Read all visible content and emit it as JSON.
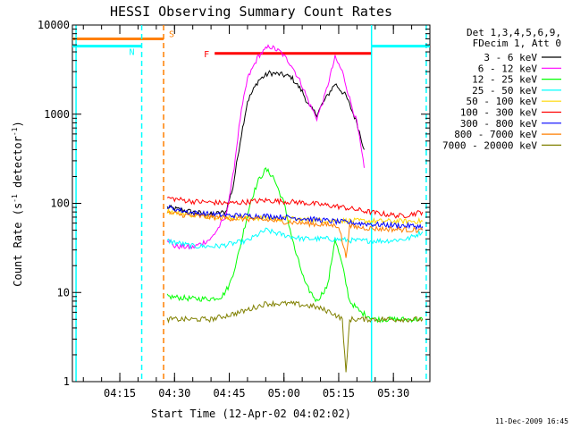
{
  "chart_data": {
    "type": "line",
    "title": "HESSI Observing Summary Count Rates",
    "xlabel": "Start Time (12-Apr-02 04:02:02)",
    "ylabel": "Count Rate (s⁻¹ detector⁻¹)",
    "ylabel_parts": {
      "main": "Count Rate (s",
      "sup1": "-1",
      "mid": " detector",
      "sup2": "-1",
      "end": ")"
    },
    "y_scale": "log",
    "ylim": [
      1,
      10000
    ],
    "y_ticks": [
      {
        "value": 1,
        "label": "1"
      },
      {
        "value": 10,
        "label": "10"
      },
      {
        "value": 100,
        "label": "100"
      },
      {
        "value": 1000,
        "label": "1000"
      },
      {
        "value": 10000,
        "label": "10000"
      }
    ],
    "xlim": [
      "04:02",
      "05:40"
    ],
    "x_ticks": [
      "04:15",
      "04:30",
      "04:45",
      "05:00",
      "05:15",
      "05:30"
    ],
    "legend_header": [
      "Det 1,3,4,5,6,9,",
      "FDecim 1, Att 0"
    ],
    "legend_placement": "right",
    "footer": "11-Dec-2009 16:45",
    "flags": [
      {
        "label": "S",
        "color": "#ff7f00",
        "x_start": "04:02",
        "x_end": "04:27",
        "y": 7000
      },
      {
        "label": "N",
        "color": "#00ffff",
        "x_start": "04:02",
        "x_end": "04:21",
        "y": 5800
      },
      {
        "label": "",
        "color": "#00ffff",
        "x_start": "05:24",
        "x_end": "05:40",
        "y": 5800
      },
      {
        "label": "F",
        "color": "#ff0000",
        "x_start": "04:41",
        "x_end": "05:24",
        "y": 4800
      }
    ],
    "vlines": [
      {
        "x": "04:03",
        "color": "#00ffff",
        "style": "solid"
      },
      {
        "x": "04:21",
        "color": "#00ffff",
        "style": "dashed"
      },
      {
        "x": "04:27",
        "color": "#ff7f00",
        "style": "dashed"
      },
      {
        "x": "05:24",
        "color": "#00ffff",
        "style": "solid"
      },
      {
        "x": "05:39",
        "color": "#00ffff",
        "style": "dashed"
      }
    ],
    "series": [
      {
        "name": "3 - 6 keV",
        "color": "#000000",
        "points": [
          [
            "04:28",
            90
          ],
          [
            "04:35",
            80
          ],
          [
            "04:40",
            75
          ],
          [
            "04:44",
            80
          ],
          [
            "04:46",
            150
          ],
          [
            "04:48",
            500
          ],
          [
            "04:50",
            1400
          ],
          [
            "04:53",
            2400
          ],
          [
            "04:56",
            2900
          ],
          [
            "04:59",
            2800
          ],
          [
            "05:02",
            2600
          ],
          [
            "05:05",
            1800
          ],
          [
            "05:07",
            1200
          ],
          [
            "05:09",
            1000
          ],
          [
            "05:11",
            1400
          ],
          [
            "05:14",
            2200
          ],
          [
            "05:17",
            1600
          ],
          [
            "05:20",
            800
          ],
          [
            "05:22",
            400
          ]
        ]
      },
      {
        "name": "6 - 12 keV",
        "color": "#ff00ff",
        "points": [
          [
            "04:28",
            40
          ],
          [
            "04:30",
            33
          ],
          [
            "04:35",
            32
          ],
          [
            "04:40",
            40
          ],
          [
            "04:44",
            70
          ],
          [
            "04:46",
            200
          ],
          [
            "04:48",
            900
          ],
          [
            "04:50",
            2500
          ],
          [
            "04:53",
            4500
          ],
          [
            "04:56",
            5800
          ],
          [
            "04:59",
            5000
          ],
          [
            "05:02",
            3600
          ],
          [
            "05:05",
            2100
          ],
          [
            "05:07",
            1300
          ],
          [
            "05:09",
            900
          ],
          [
            "05:11",
            1500
          ],
          [
            "05:14",
            4300
          ],
          [
            "05:16",
            3000
          ],
          [
            "05:18",
            1500
          ],
          [
            "05:20",
            800
          ],
          [
            "05:22",
            250
          ]
        ]
      },
      {
        "name": "12 - 25 keV",
        "color": "#00ff00",
        "points": [
          [
            "04:28",
            9
          ],
          [
            "04:35",
            8.5
          ],
          [
            "04:40",
            8.5
          ],
          [
            "04:43",
            9
          ],
          [
            "04:45",
            12
          ],
          [
            "04:47",
            22
          ],
          [
            "04:49",
            50
          ],
          [
            "04:51",
            110
          ],
          [
            "04:53",
            180
          ],
          [
            "04:55",
            240
          ],
          [
            "04:57",
            200
          ],
          [
            "05:00",
            100
          ],
          [
            "05:03",
            30
          ],
          [
            "05:06",
            12
          ],
          [
            "05:09",
            8
          ],
          [
            "05:12",
            12
          ],
          [
            "05:14",
            40
          ],
          [
            "05:16",
            20
          ],
          [
            "05:18",
            8
          ],
          [
            "05:21",
            6
          ],
          [
            "05:25",
            5
          ],
          [
            "05:30",
            5
          ],
          [
            "05:38",
            5
          ]
        ]
      },
      {
        "name": "25 - 50 keV",
        "color": "#00ffff",
        "points": [
          [
            "04:28",
            38
          ],
          [
            "04:35",
            33
          ],
          [
            "04:42",
            33
          ],
          [
            "04:50",
            38
          ],
          [
            "04:55",
            50
          ],
          [
            "04:59",
            45
          ],
          [
            "05:05",
            40
          ],
          [
            "05:12",
            40
          ],
          [
            "05:20",
            38
          ],
          [
            "05:28",
            38
          ],
          [
            "05:34",
            40
          ],
          [
            "05:38",
            48
          ]
        ]
      },
      {
        "name": "50 - 100 keV",
        "color": "#ffd700",
        "points": [
          [
            "04:28",
            82
          ],
          [
            "04:35",
            74
          ],
          [
            "04:45",
            70
          ],
          [
            "04:55",
            68
          ],
          [
            "05:05",
            66
          ],
          [
            "05:15",
            64
          ],
          [
            "05:25",
            63
          ],
          [
            "05:38",
            63
          ]
        ]
      },
      {
        "name": "100 - 300 keV",
        "color": "#ff0000",
        "points": [
          [
            "04:28",
            115
          ],
          [
            "04:35",
            105
          ],
          [
            "04:45",
            100
          ],
          [
            "04:55",
            108
          ],
          [
            "05:05",
            102
          ],
          [
            "05:15",
            92
          ],
          [
            "05:25",
            78
          ],
          [
            "05:32",
            72
          ],
          [
            "05:38",
            80
          ]
        ]
      },
      {
        "name": "300 - 800 keV",
        "color": "#0000ff",
        "points": [
          [
            "04:28",
            90
          ],
          [
            "04:35",
            78
          ],
          [
            "04:45",
            73
          ],
          [
            "04:55",
            72
          ],
          [
            "05:05",
            68
          ],
          [
            "05:15",
            62
          ],
          [
            "05:25",
            58
          ],
          [
            "05:38",
            55
          ]
        ]
      },
      {
        "name": "800 - 7000 keV",
        "color": "#ff7f00",
        "points": [
          [
            "04:28",
            78
          ],
          [
            "04:35",
            72
          ],
          [
            "04:45",
            68
          ],
          [
            "04:55",
            65
          ],
          [
            "05:05",
            60
          ],
          [
            "05:15",
            56
          ],
          [
            "05:17",
            25
          ],
          [
            "05:18",
            55
          ],
          [
            "05:25",
            52
          ],
          [
            "05:38",
            50
          ]
        ]
      },
      {
        "name": "7000 - 20000 keV",
        "color": "#808000",
        "points": [
          [
            "04:28",
            5
          ],
          [
            "04:40",
            5
          ],
          [
            "04:48",
            6
          ],
          [
            "04:55",
            7.5
          ],
          [
            "05:02",
            7.5
          ],
          [
            "05:08",
            7
          ],
          [
            "05:13",
            6
          ],
          [
            "05:16",
            5
          ],
          [
            "05:17",
            1.2
          ],
          [
            "05:18",
            5
          ],
          [
            "05:25",
            5
          ],
          [
            "05:38",
            5
          ]
        ]
      }
    ]
  }
}
